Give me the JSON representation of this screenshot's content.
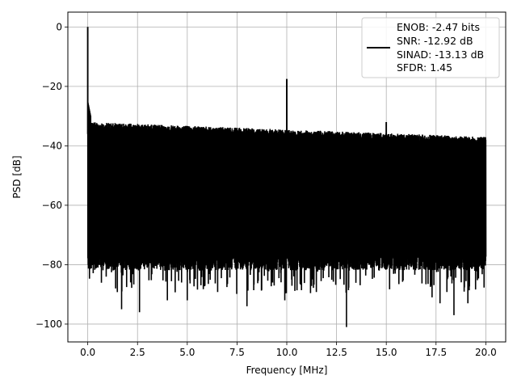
{
  "chart_data": {
    "type": "line",
    "title": "",
    "xlabel": "Frequency [MHz]",
    "ylabel": "PSD [dB]",
    "xlim": [
      -1.0,
      21.0
    ],
    "ylim": [
      -106,
      5
    ],
    "xticks": [
      0.0,
      2.5,
      5.0,
      7.5,
      10.0,
      12.5,
      15.0,
      17.5,
      20.0
    ],
    "xtick_labels": [
      "0.0",
      "2.5",
      "5.0",
      "7.5",
      "10.0",
      "12.5",
      "15.0",
      "17.5",
      "20.0"
    ],
    "yticks": [
      0,
      -20,
      -40,
      -60,
      -80,
      -100
    ],
    "ytick_labels": [
      "0",
      "−20",
      "−40",
      "−60",
      "−80",
      "−100"
    ],
    "grid": true,
    "legend_position": "top-right",
    "series": [
      {
        "color": "#000000",
        "noise_floor_top_start_db": -32,
        "noise_floor_top_end_db": -37,
        "noise_floor_bottom_db": -76,
        "peaks": [
          {
            "x": 0.0,
            "y": 0
          },
          {
            "x": 10.0,
            "y": -17.5
          },
          {
            "x": 15.0,
            "y": -32
          }
        ],
        "dips": [
          {
            "x": 0.35,
            "y": -78
          },
          {
            "x": 1.4,
            "y": -88
          },
          {
            "x": 1.7,
            "y": -95
          },
          {
            "x": 2.6,
            "y": -96
          },
          {
            "x": 4.0,
            "y": -92
          },
          {
            "x": 5.0,
            "y": -92
          },
          {
            "x": 8.0,
            "y": -94
          },
          {
            "x": 9.9,
            "y": -92
          },
          {
            "x": 13.0,
            "y": -101
          },
          {
            "x": 17.3,
            "y": -91
          },
          {
            "x": 17.7,
            "y": -93
          },
          {
            "x": 18.4,
            "y": -97
          },
          {
            "x": 19.1,
            "y": -93
          }
        ]
      }
    ],
    "legend": {
      "lines": [
        "ENOB: -2.47 bits",
        "SNR: -12.92 dB",
        "SINAD: -13.13 dB",
        "SFDR: 1.45"
      ]
    }
  }
}
